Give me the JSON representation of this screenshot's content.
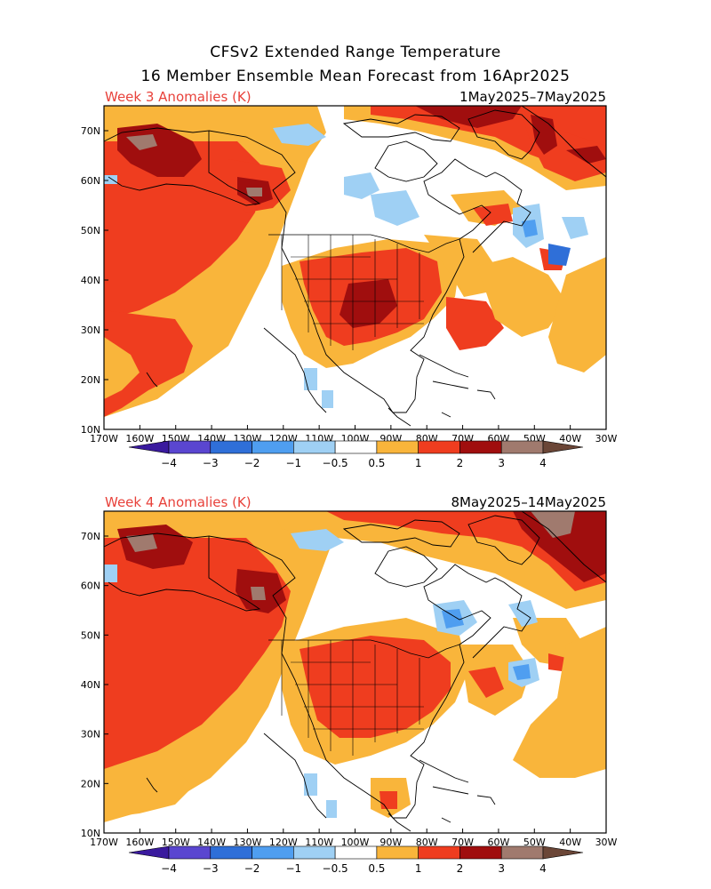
{
  "title_line1": "CFSv2 Extended Range Temperature",
  "title_line2": "16 Member Ensemble Mean Forecast from 16Apr2025",
  "panels": [
    {
      "label": "Week 3 Anomalies (K)",
      "dates": "1May2025–7May2025"
    },
    {
      "label": "Week 4 Anomalies (K)",
      "dates": "8May2025–14May2025"
    }
  ],
  "lat_labels": [
    "70N",
    "60N",
    "50N",
    "40N",
    "30N",
    "20N",
    "10N"
  ],
  "lon_labels": [
    "170W",
    "160W",
    "150W",
    "140W",
    "130W",
    "120W",
    "110W",
    "100W",
    "90W",
    "80W",
    "70W",
    "60W",
    "50W",
    "40W",
    "30W"
  ],
  "colorbar": {
    "labels": [
      "−4",
      "−3",
      "−2",
      "−1",
      "−0.5",
      "0.5",
      "1",
      "2",
      "3",
      "4"
    ],
    "colors": [
      "#3a1a9e",
      "#5a46d0",
      "#2f6fd8",
      "#4f9ef0",
      "#9fd0f4",
      "#ffffff",
      "#f9b53b",
      "#ef3d1f",
      "#a00e0e",
      "#a07a6e",
      "#6b4637"
    ]
  }
}
